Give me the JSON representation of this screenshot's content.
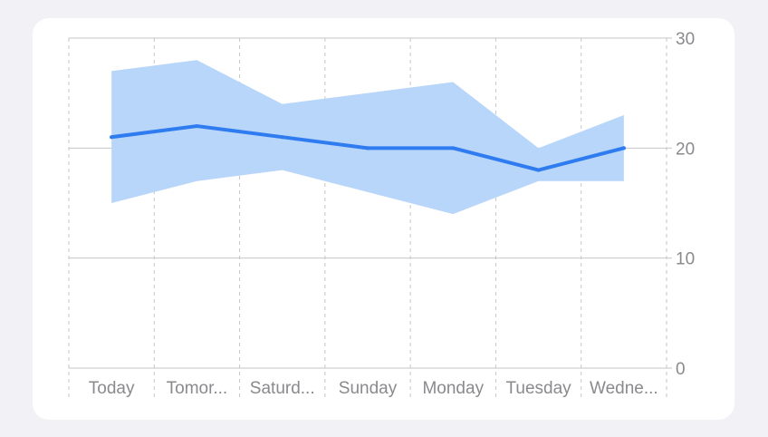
{
  "colors": {
    "background": "#f1f1f6",
    "card": "#ffffff",
    "line": "#2f7bf0",
    "band": "#b8d5fa",
    "grid": "#c6c6c8",
    "tick_text": "#8a8a8e"
  },
  "chart_data": {
    "type": "line",
    "title": "",
    "xlabel": "",
    "ylabel": "",
    "ylim": [
      0,
      30
    ],
    "y_ticks": [
      "0",
      "10",
      "20",
      "30"
    ],
    "y_axis_position": "right",
    "grid": true,
    "categories": [
      "Today",
      "Tomor...",
      "Saturd...",
      "Sunday",
      "Monday",
      "Tuesday",
      "Wedne..."
    ],
    "series": [
      {
        "kind": "line",
        "values": [
          21,
          22,
          21,
          20,
          20,
          18,
          20
        ]
      },
      {
        "kind": "range-band",
        "upper": [
          27,
          28,
          24,
          25,
          26,
          20,
          23
        ],
        "lower": [
          15,
          17,
          18,
          16,
          14,
          17,
          17
        ]
      }
    ]
  }
}
